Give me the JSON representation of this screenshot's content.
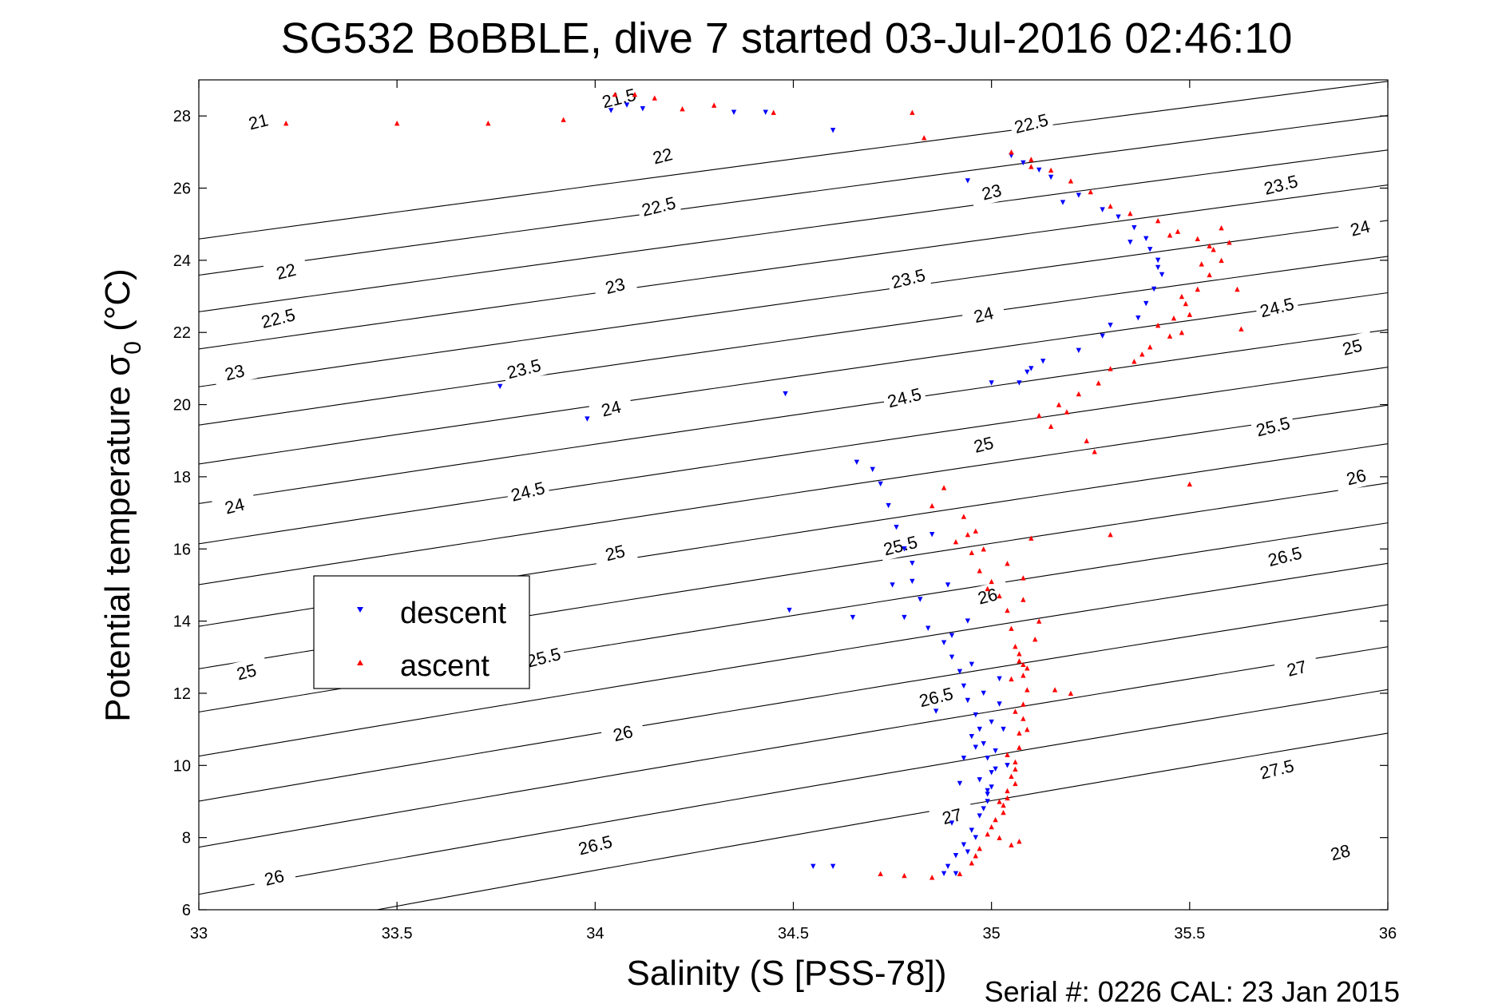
{
  "chart_data": {
    "type": "scatter",
    "title": "SG532 BoBBLE, dive 7 started 03-Jul-2016 02:46:10",
    "xlabel": "Salinity (S [PSS-78])",
    "ylabel_main": "Potential temperature σ",
    "ylabel_sub": "0",
    "ylabel_unit": " (°C)",
    "footer": "Serial #: 0226  CAL: 23 Jan 2015",
    "xlim": [
      33,
      36
    ],
    "ylim": [
      6,
      29
    ],
    "x_ticks": [
      33,
      33.5,
      34,
      34.5,
      35,
      35.5,
      36
    ],
    "x_tick_labels": [
      "33",
      "33.5",
      "34",
      "34.5",
      "35",
      "35.5",
      "36"
    ],
    "y_ticks": [
      6,
      8,
      10,
      12,
      14,
      16,
      18,
      20,
      22,
      24,
      26,
      28
    ],
    "y_tick_labels": [
      "6",
      "8",
      "10",
      "12",
      "14",
      "16",
      "18",
      "20",
      "22",
      "24",
      "26",
      "28"
    ],
    "legend": {
      "placement": "left-middle",
      "entries": [
        {
          "label": "descent",
          "color": "#0000ff",
          "marker": "triangle-down"
        },
        {
          "label": "ascent",
          "color": "#ff0000",
          "marker": "triangle-up"
        }
      ]
    },
    "contours": {
      "description_units": "sigma-0 density anomaly (kg/m3)",
      "levels": [
        {
          "label": "21",
          "value": 21
        },
        {
          "label": "21.5",
          "value": 21.5
        },
        {
          "label": "22",
          "value": 22
        },
        {
          "label": "22.5",
          "value": 22.5
        },
        {
          "label": "23",
          "value": 23
        },
        {
          "label": "23.5",
          "value": 23.5
        },
        {
          "label": "24",
          "value": 24
        },
        {
          "label": "24.5",
          "value": 24.5
        },
        {
          "label": "25",
          "value": 25
        },
        {
          "label": "25.5",
          "value": 25.5
        },
        {
          "label": "26",
          "value": 26
        },
        {
          "label": "26.5",
          "value": 26.5
        },
        {
          "label": "27",
          "value": 27
        },
        {
          "label": "27.5",
          "value": 27.5
        },
        {
          "label": "28",
          "value": 28
        }
      ],
      "label_positions": [
        {
          "text": "21",
          "x": 33.15,
          "y": 27.85
        },
        {
          "text": "21.5",
          "x": 34.06,
          "y": 28.5
        },
        {
          "text": "22",
          "x": 34.17,
          "y": 26.9
        },
        {
          "text": "22",
          "x": 33.22,
          "y": 23.7
        },
        {
          "text": "22.5",
          "x": 34.16,
          "y": 25.5
        },
        {
          "text": "22.5",
          "x": 35.1,
          "y": 27.8
        },
        {
          "text": "22.5",
          "x": 33.2,
          "y": 22.4
        },
        {
          "text": "23",
          "x": 33.09,
          "y": 20.9
        },
        {
          "text": "23",
          "x": 34.05,
          "y": 23.3
        },
        {
          "text": "23",
          "x": 35.0,
          "y": 25.9
        },
        {
          "text": "23.5",
          "x": 33.82,
          "y": 21.0
        },
        {
          "text": "23.5",
          "x": 34.79,
          "y": 23.5
        },
        {
          "text": "23.5",
          "x": 35.73,
          "y": 26.1
        },
        {
          "text": "24",
          "x": 33.09,
          "y": 17.2
        },
        {
          "text": "24",
          "x": 34.04,
          "y": 19.9
        },
        {
          "text": "24",
          "x": 34.98,
          "y": 22.5
        },
        {
          "text": "24",
          "x": 35.93,
          "y": 24.9
        },
        {
          "text": "24.5",
          "x": 33.83,
          "y": 17.6
        },
        {
          "text": "24.5",
          "x": 34.78,
          "y": 20.2
        },
        {
          "text": "24.5",
          "x": 35.72,
          "y": 22.7
        },
        {
          "text": "25",
          "x": 33.12,
          "y": 12.6
        },
        {
          "text": "25",
          "x": 34.05,
          "y": 15.9
        },
        {
          "text": "25",
          "x": 34.98,
          "y": 18.9
        },
        {
          "text": "25",
          "x": 35.91,
          "y": 21.6
        },
        {
          "text": "25.5",
          "x": 33.87,
          "y": 13.0
        },
        {
          "text": "25.5",
          "x": 34.77,
          "y": 16.1
        },
        {
          "text": "25.5",
          "x": 35.71,
          "y": 19.4
        },
        {
          "text": "26",
          "x": 33.19,
          "y": 6.9
        },
        {
          "text": "26",
          "x": 34.07,
          "y": 10.9
        },
        {
          "text": "26",
          "x": 34.99,
          "y": 14.7
        },
        {
          "text": "26",
          "x": 35.92,
          "y": 18.0
        },
        {
          "text": "26.5",
          "x": 34.0,
          "y": 7.8
        },
        {
          "text": "26.5",
          "x": 34.86,
          "y": 11.9
        },
        {
          "text": "26.5",
          "x": 35.74,
          "y": 15.8
        },
        {
          "text": "27",
          "x": 34.9,
          "y": 8.6
        },
        {
          "text": "27",
          "x": 35.77,
          "y": 12.7
        },
        {
          "text": "27.5",
          "x": 35.72,
          "y": 9.9
        },
        {
          "text": "28",
          "x": 35.88,
          "y": 7.6
        }
      ]
    },
    "series": [
      {
        "name": "descent",
        "color": "#0000ff",
        "marker": "triangle-down",
        "points": [
          [
            34.04,
            28.15
          ],
          [
            34.08,
            28.3
          ],
          [
            34.12,
            28.2
          ],
          [
            34.35,
            28.1
          ],
          [
            34.43,
            28.1
          ],
          [
            34.6,
            27.6
          ],
          [
            34.94,
            26.2
          ],
          [
            35.05,
            26.9
          ],
          [
            35.08,
            26.7
          ],
          [
            35.12,
            26.5
          ],
          [
            35.15,
            26.3
          ],
          [
            35.22,
            25.8
          ],
          [
            35.28,
            25.4
          ],
          [
            35.32,
            25.2
          ],
          [
            35.36,
            24.9
          ],
          [
            35.39,
            24.6
          ],
          [
            35.4,
            24.3
          ],
          [
            35.42,
            24.0
          ],
          [
            35.43,
            23.6
          ],
          [
            35.41,
            23.2
          ],
          [
            35.39,
            22.8
          ],
          [
            35.37,
            22.4
          ],
          [
            35.28,
            21.9
          ],
          [
            35.22,
            21.5
          ],
          [
            35.13,
            21.2
          ],
          [
            35.09,
            20.9
          ],
          [
            35.07,
            20.6
          ],
          [
            35.0,
            20.6
          ],
          [
            33.76,
            20.5
          ],
          [
            33.98,
            19.6
          ],
          [
            34.48,
            20.3
          ],
          [
            34.66,
            18.4
          ],
          [
            34.7,
            18.2
          ],
          [
            34.72,
            17.8
          ],
          [
            34.74,
            17.2
          ],
          [
            34.76,
            16.6
          ],
          [
            34.78,
            16.0
          ],
          [
            34.8,
            15.6
          ],
          [
            34.8,
            15.1
          ],
          [
            34.82,
            14.6
          ],
          [
            34.78,
            14.1
          ],
          [
            34.84,
            13.8
          ],
          [
            34.88,
            13.4
          ],
          [
            34.9,
            13.0
          ],
          [
            34.92,
            12.6
          ],
          [
            34.93,
            12.2
          ],
          [
            34.94,
            11.8
          ],
          [
            34.96,
            11.4
          ],
          [
            34.97,
            11.0
          ],
          [
            34.98,
            10.6
          ],
          [
            34.99,
            10.2
          ],
          [
            35.0,
            9.8
          ],
          [
            35.0,
            9.4
          ],
          [
            34.99,
            9.0
          ],
          [
            34.97,
            8.6
          ],
          [
            34.95,
            8.2
          ],
          [
            34.93,
            7.8
          ],
          [
            34.91,
            7.5
          ],
          [
            34.89,
            7.2
          ],
          [
            34.88,
            7.0
          ],
          [
            34.6,
            7.2
          ],
          [
            34.55,
            7.2
          ],
          [
            34.49,
            14.3
          ],
          [
            34.65,
            14.1
          ],
          [
            34.75,
            15.0
          ],
          [
            34.86,
            11.5
          ],
          [
            34.92,
            9.5
          ],
          [
            34.9,
            8.4
          ],
          [
            34.95,
            10.8
          ],
          [
            34.98,
            12.0
          ],
          [
            35.02,
            12.4
          ],
          [
            35.03,
            11.0
          ],
          [
            34.94,
            14.0
          ],
          [
            34.85,
            16.4
          ],
          [
            34.96,
            8.0
          ],
          [
            34.99,
            9.2
          ],
          [
            35.01,
            10.4
          ],
          [
            34.97,
            9.6
          ],
          [
            34.93,
            10.2
          ],
          [
            35.02,
            11.7
          ],
          [
            34.95,
            12.8
          ],
          [
            34.9,
            13.6
          ],
          [
            34.91,
            7.0
          ],
          [
            34.94,
            7.6
          ],
          [
            34.98,
            8.8
          ],
          [
            35.04,
            10.0
          ],
          [
            35.01,
            9.9
          ],
          [
            34.89,
            15.0
          ],
          [
            35.18,
            25.6
          ],
          [
            35.35,
            24.5
          ],
          [
            35.42,
            23.8
          ],
          [
            35.3,
            22.2
          ],
          [
            35.1,
            21.0
          ],
          [
            34.99,
            9.3
          ],
          [
            34.96,
            10.5
          ],
          [
            35.0,
            11.2
          ]
        ]
      },
      {
        "name": "ascent",
        "color": "#ff0000",
        "marker": "triangle-up",
        "points": [
          [
            33.22,
            27.8
          ],
          [
            33.5,
            27.8
          ],
          [
            33.73,
            27.8
          ],
          [
            33.92,
            27.9
          ],
          [
            34.05,
            28.6
          ],
          [
            34.1,
            28.6
          ],
          [
            34.15,
            28.5
          ],
          [
            34.22,
            28.2
          ],
          [
            34.3,
            28.3
          ],
          [
            34.45,
            28.1
          ],
          [
            34.8,
            28.1
          ],
          [
            34.83,
            27.4
          ],
          [
            35.05,
            27.0
          ],
          [
            35.1,
            26.8
          ],
          [
            35.15,
            26.5
          ],
          [
            35.2,
            26.2
          ],
          [
            35.25,
            25.9
          ],
          [
            35.3,
            25.5
          ],
          [
            35.35,
            25.3
          ],
          [
            35.42,
            25.1
          ],
          [
            35.47,
            24.8
          ],
          [
            35.52,
            24.6
          ],
          [
            35.56,
            24.3
          ],
          [
            35.58,
            24.0
          ],
          [
            35.55,
            23.6
          ],
          [
            35.52,
            23.2
          ],
          [
            35.49,
            22.8
          ],
          [
            35.46,
            22.4
          ],
          [
            35.48,
            22.0
          ],
          [
            35.4,
            21.6
          ],
          [
            35.36,
            21.2
          ],
          [
            35.27,
            20.6
          ],
          [
            35.22,
            20.3
          ],
          [
            35.17,
            20.0
          ],
          [
            35.12,
            19.7
          ],
          [
            35.15,
            19.4
          ],
          [
            35.26,
            18.7
          ],
          [
            35.5,
            17.8
          ],
          [
            34.88,
            17.7
          ],
          [
            34.85,
            17.2
          ],
          [
            34.93,
            16.9
          ],
          [
            34.96,
            16.5
          ],
          [
            34.91,
            16.2
          ],
          [
            34.95,
            15.9
          ],
          [
            34.97,
            15.4
          ],
          [
            35.0,
            15.1
          ],
          [
            35.02,
            14.7
          ],
          [
            35.04,
            14.3
          ],
          [
            35.05,
            13.8
          ],
          [
            35.06,
            13.3
          ],
          [
            35.07,
            12.9
          ],
          [
            35.08,
            12.5
          ],
          [
            35.09,
            12.1
          ],
          [
            35.08,
            11.7
          ],
          [
            35.08,
            11.3
          ],
          [
            35.07,
            10.9
          ],
          [
            35.07,
            10.5
          ],
          [
            35.06,
            10.1
          ],
          [
            35.05,
            9.7
          ],
          [
            35.04,
            9.3
          ],
          [
            35.03,
            8.9
          ],
          [
            35.01,
            8.5
          ],
          [
            34.99,
            8.1
          ],
          [
            34.97,
            7.7
          ],
          [
            34.95,
            7.3
          ],
          [
            34.92,
            7.0
          ],
          [
            34.72,
            7.0
          ],
          [
            34.78,
            6.95
          ],
          [
            34.85,
            6.9
          ],
          [
            35.2,
            12.0
          ],
          [
            35.16,
            12.1
          ],
          [
            35.3,
            16.4
          ],
          [
            35.1,
            16.3
          ],
          [
            35.08,
            15.2
          ],
          [
            35.12,
            14.0
          ],
          [
            35.05,
            7.8
          ],
          [
            35.07,
            7.9
          ],
          [
            35.02,
            8.0
          ],
          [
            35.03,
            8.7
          ],
          [
            35.06,
            9.5
          ],
          [
            35.09,
            11.0
          ],
          [
            35.08,
            12.8
          ],
          [
            35.11,
            13.5
          ],
          [
            35.08,
            14.6
          ],
          [
            35.04,
            15.6
          ],
          [
            34.98,
            16.0
          ],
          [
            35.6,
            24.5
          ],
          [
            35.62,
            23.2
          ],
          [
            35.63,
            22.1
          ],
          [
            35.58,
            24.9
          ],
          [
            35.5,
            22.5
          ],
          [
            35.45,
            21.9
          ],
          [
            35.38,
            21.4
          ],
          [
            35.3,
            21.0
          ],
          [
            35.24,
            19.0
          ],
          [
            35.19,
            19.8
          ],
          [
            35.45,
            24.7
          ],
          [
            35.53,
            23.9
          ],
          [
            35.55,
            24.4
          ],
          [
            35.48,
            23.0
          ],
          [
            35.42,
            22.2
          ],
          [
            35.1,
            26.6
          ],
          [
            35.05,
            12.4
          ],
          [
            35.06,
            11.5
          ],
          [
            35.04,
            10.3
          ],
          [
            35.02,
            9.0
          ],
          [
            35.0,
            8.3
          ],
          [
            34.96,
            7.5
          ],
          [
            35.07,
            13.1
          ],
          [
            35.09,
            12.7
          ],
          [
            34.99,
            14.9
          ],
          [
            34.94,
            16.4
          ],
          [
            35.06,
            9.9
          ],
          [
            35.04,
            9.1
          ]
        ]
      }
    ]
  }
}
